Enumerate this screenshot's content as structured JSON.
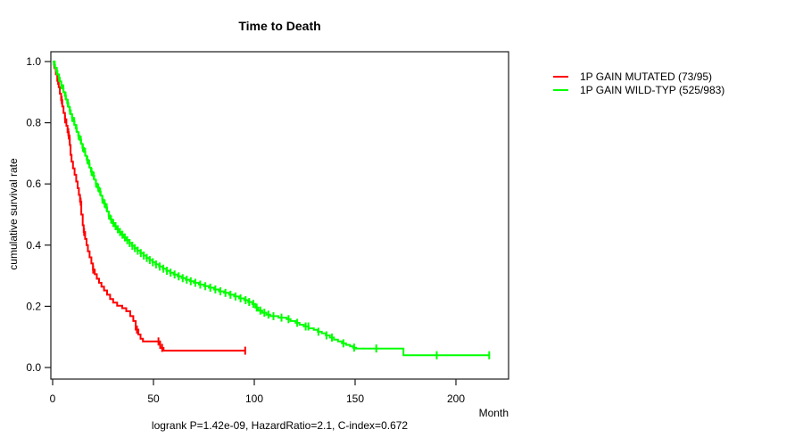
{
  "chart_data": {
    "type": "line",
    "subtype": "kaplan_meier_survival_step",
    "title": "Time to Death",
    "xlabel": "Month",
    "ylabel": "cumulative survival rate",
    "annotation": "logrank P=1.42e-09, HazardRatio=2.1, C-index=0.672",
    "xlim": [
      0,
      226
    ],
    "ylim": [
      0,
      1
    ],
    "xticks": [
      0,
      50,
      100,
      150,
      200
    ],
    "xtick_labels": [
      "0",
      "50",
      "100",
      "150",
      "200"
    ],
    "yticks": [
      0,
      0.2,
      0.4,
      0.6,
      0.8,
      1
    ],
    "ytick_labels": [
      "0.0",
      "0.2",
      "0.4",
      "0.6",
      "0.8",
      "1.0"
    ],
    "grid": false,
    "legend_position": "outside-right-top",
    "axis_color": "#1a1a1a",
    "series": [
      {
        "name": "1P GAIN MUTATED (73/95)",
        "color": "#ff0000",
        "events_ratio": "73/95",
        "steps": [
          [
            0,
            1.0
          ],
          [
            0.8,
            0.979
          ],
          [
            1.6,
            0.958
          ],
          [
            2.3,
            0.937
          ],
          [
            3.0,
            0.916
          ],
          [
            3.6,
            0.895
          ],
          [
            4.2,
            0.874
          ],
          [
            4.8,
            0.853
          ],
          [
            5.4,
            0.832
          ],
          [
            6.1,
            0.811
          ],
          [
            6.8,
            0.79
          ],
          [
            7.4,
            0.769
          ],
          [
            8.0,
            0.748
          ],
          [
            8.5,
            0.727
          ],
          [
            8.9,
            0.695
          ],
          [
            9.4,
            0.673
          ],
          [
            10.1,
            0.651
          ],
          [
            10.9,
            0.63
          ],
          [
            11.7,
            0.608
          ],
          [
            12.4,
            0.586
          ],
          [
            13.0,
            0.564
          ],
          [
            13.6,
            0.542
          ],
          [
            14.2,
            0.5
          ],
          [
            14.9,
            0.465
          ],
          [
            15.4,
            0.443
          ],
          [
            16.1,
            0.42
          ],
          [
            16.8,
            0.4
          ],
          [
            17.5,
            0.38
          ],
          [
            18.3,
            0.36
          ],
          [
            19.2,
            0.34
          ],
          [
            20.0,
            0.32
          ],
          [
            20.9,
            0.305
          ],
          [
            21.9,
            0.29
          ],
          [
            23.0,
            0.277
          ],
          [
            24.2,
            0.264
          ],
          [
            25.5,
            0.252
          ],
          [
            27.0,
            0.238
          ],
          [
            28.5,
            0.224
          ],
          [
            30.0,
            0.212
          ],
          [
            32.0,
            0.202
          ],
          [
            34.5,
            0.194
          ],
          [
            36.5,
            0.184
          ],
          [
            38.5,
            0.168
          ],
          [
            40.0,
            0.152
          ],
          [
            41.2,
            0.124
          ],
          [
            42.5,
            0.108
          ],
          [
            43.6,
            0.094
          ],
          [
            44.8,
            0.085
          ],
          [
            53.3,
            0.064
          ],
          [
            55.0,
            0.055
          ],
          [
            95.5,
            0.055
          ]
        ],
        "censor_times": [
          2.7,
          4.5,
          6.2,
          7.8,
          8.4,
          13.9,
          15.6,
          20.1,
          41.8,
          52.5,
          54.3,
          95.5
        ]
      },
      {
        "name": "1P GAIN WILD-TYP (525/983)",
        "color": "#00ff00",
        "events_ratio": "525/983",
        "steps": [
          [
            0,
            1.0
          ],
          [
            0.6,
            0.99
          ],
          [
            1.2,
            0.98
          ],
          [
            1.8,
            0.969
          ],
          [
            2.4,
            0.958
          ],
          [
            3.0,
            0.947
          ],
          [
            3.6,
            0.935
          ],
          [
            4.2,
            0.923
          ],
          [
            4.8,
            0.912
          ],
          [
            5.4,
            0.9
          ],
          [
            6.0,
            0.888
          ],
          [
            6.6,
            0.876
          ],
          [
            7.2,
            0.864
          ],
          [
            7.8,
            0.852
          ],
          [
            8.4,
            0.84
          ],
          [
            9.0,
            0.828
          ],
          [
            9.6,
            0.816
          ],
          [
            10.2,
            0.805
          ],
          [
            10.8,
            0.793
          ],
          [
            11.4,
            0.782
          ],
          [
            12.0,
            0.77
          ],
          [
            12.7,
            0.757
          ],
          [
            13.4,
            0.744
          ],
          [
            14.1,
            0.731
          ],
          [
            14.8,
            0.718
          ],
          [
            15.5,
            0.705
          ],
          [
            16.2,
            0.692
          ],
          [
            16.9,
            0.679
          ],
          [
            17.6,
            0.666
          ],
          [
            18.3,
            0.653
          ],
          [
            19.0,
            0.64
          ],
          [
            19.8,
            0.627
          ],
          [
            20.6,
            0.614
          ],
          [
            21.4,
            0.601
          ],
          [
            22.2,
            0.588
          ],
          [
            23.0,
            0.575
          ],
          [
            23.8,
            0.562
          ],
          [
            24.6,
            0.549
          ],
          [
            25.4,
            0.536
          ],
          [
            26.2,
            0.523
          ],
          [
            27.0,
            0.51
          ],
          [
            27.8,
            0.497
          ],
          [
            28.6,
            0.484
          ],
          [
            29.5,
            0.472
          ],
          [
            30.5,
            0.462
          ],
          [
            31.6,
            0.452
          ],
          [
            32.8,
            0.443
          ],
          [
            34.0,
            0.434
          ],
          [
            35.3,
            0.425
          ],
          [
            36.6,
            0.416
          ],
          [
            38.0,
            0.407
          ],
          [
            39.3,
            0.398
          ],
          [
            40.6,
            0.39
          ],
          [
            42.0,
            0.382
          ],
          [
            43.5,
            0.374
          ],
          [
            45.0,
            0.366
          ],
          [
            46.5,
            0.358
          ],
          [
            48.0,
            0.351
          ],
          [
            49.5,
            0.344
          ],
          [
            51.0,
            0.337
          ],
          [
            52.8,
            0.33
          ],
          [
            54.6,
            0.323
          ],
          [
            56.4,
            0.316
          ],
          [
            58.2,
            0.31
          ],
          [
            60.0,
            0.304
          ],
          [
            62.0,
            0.298
          ],
          [
            64.0,
            0.292
          ],
          [
            66.0,
            0.287
          ],
          [
            68.0,
            0.282
          ],
          [
            70.0,
            0.277
          ],
          [
            72.5,
            0.271
          ],
          [
            75.0,
            0.266
          ],
          [
            77.5,
            0.261
          ],
          [
            80.0,
            0.255
          ],
          [
            82.5,
            0.249
          ],
          [
            85.0,
            0.244
          ],
          [
            87.5,
            0.238
          ],
          [
            90.0,
            0.232
          ],
          [
            92.5,
            0.226
          ],
          [
            95.0,
            0.22
          ],
          [
            97.0,
            0.214
          ],
          [
            99.0,
            0.208
          ],
          [
            100.5,
            0.196
          ],
          [
            102.0,
            0.186
          ],
          [
            104.0,
            0.179
          ],
          [
            106.0,
            0.173
          ],
          [
            108.0,
            0.168
          ],
          [
            112.0,
            0.163
          ],
          [
            116.0,
            0.158
          ],
          [
            118.0,
            0.152
          ],
          [
            120.5,
            0.146
          ],
          [
            122.5,
            0.14
          ],
          [
            124.5,
            0.134
          ],
          [
            127.0,
            0.128
          ],
          [
            129.5,
            0.123
          ],
          [
            131.5,
            0.117
          ],
          [
            133.5,
            0.112
          ],
          [
            135.5,
            0.105
          ],
          [
            137.5,
            0.098
          ],
          [
            139.5,
            0.091
          ],
          [
            141.5,
            0.085
          ],
          [
            143.5,
            0.079
          ],
          [
            145.5,
            0.074
          ],
          [
            147.5,
            0.069
          ],
          [
            149.0,
            0.065
          ],
          [
            150.5,
            0.062
          ],
          [
            174.0,
            0.04
          ],
          [
            216.5,
            0.04
          ]
        ],
        "censor_times": [
          1.0,
          2.1,
          3.2,
          4.3,
          5.3,
          6.4,
          7.5,
          8.6,
          9.7,
          10.7,
          11.8,
          12.9,
          14.0,
          15.0,
          16.1,
          17.2,
          18.2,
          19.3,
          20.4,
          21.5,
          22.6,
          23.6,
          24.7,
          25.8,
          26.8,
          27.9,
          29.0,
          30.1,
          31.2,
          32.3,
          33.4,
          34.6,
          35.8,
          37.0,
          38.2,
          39.5,
          40.8,
          42.2,
          43.7,
          45.2,
          46.7,
          48.2,
          49.7,
          51.3,
          53.1,
          54.9,
          56.7,
          58.5,
          60.5,
          62.5,
          64.5,
          66.5,
          68.5,
          70.8,
          73.2,
          75.7,
          78.2,
          80.7,
          83.2,
          85.7,
          88.2,
          90.7,
          93.2,
          95.7,
          97.5,
          99.5,
          101.2,
          103.0,
          105.0,
          107.0,
          109.5,
          113.5,
          117.0,
          121.3,
          125.5,
          126.8,
          131.8,
          135.8,
          138.5,
          144.2,
          149.5,
          160.5,
          190.5,
          216.5
        ]
      }
    ]
  }
}
